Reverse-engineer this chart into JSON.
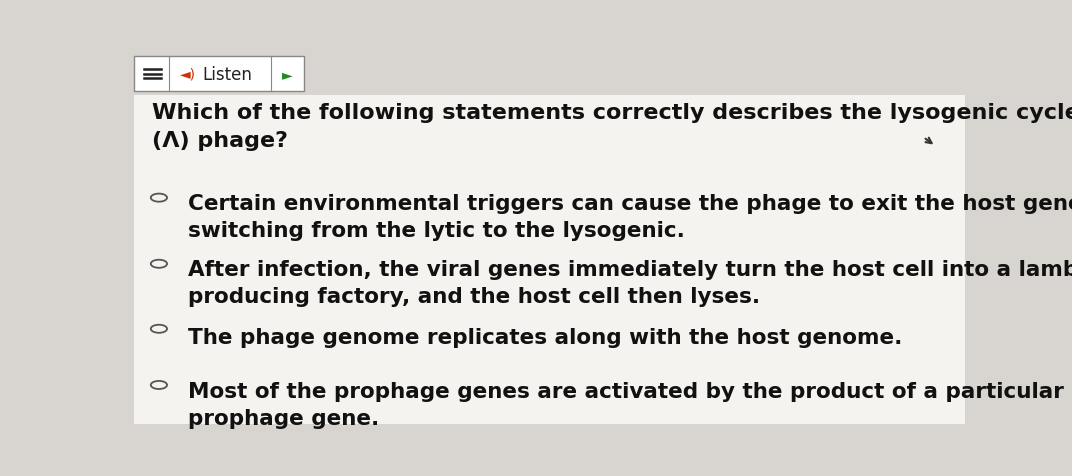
{
  "background_color": "#d8d5d0",
  "header_bg": "#ffffff",
  "question": "Which of the following statements correctly describes the lysogenic cycle of lambda\n(Λ) phage?",
  "options": [
    "Certain environmental triggers can cause the phage to exit the host genome,\nswitching from the lytic to the lysogenic.",
    "After infection, the viral genes immediately turn the host cell into a lambda-\nproducing factory, and the host cell then lyses.",
    "The phage genome replicates along with the host genome.",
    "Most of the prophage genes are activated by the product of a particular\nprophage gene."
  ],
  "question_fontsize": 16,
  "option_fontsize": 15.5,
  "text_color": "#111111",
  "circle_color": "#555555",
  "header_fontsize": 12,
  "question_bold": true
}
